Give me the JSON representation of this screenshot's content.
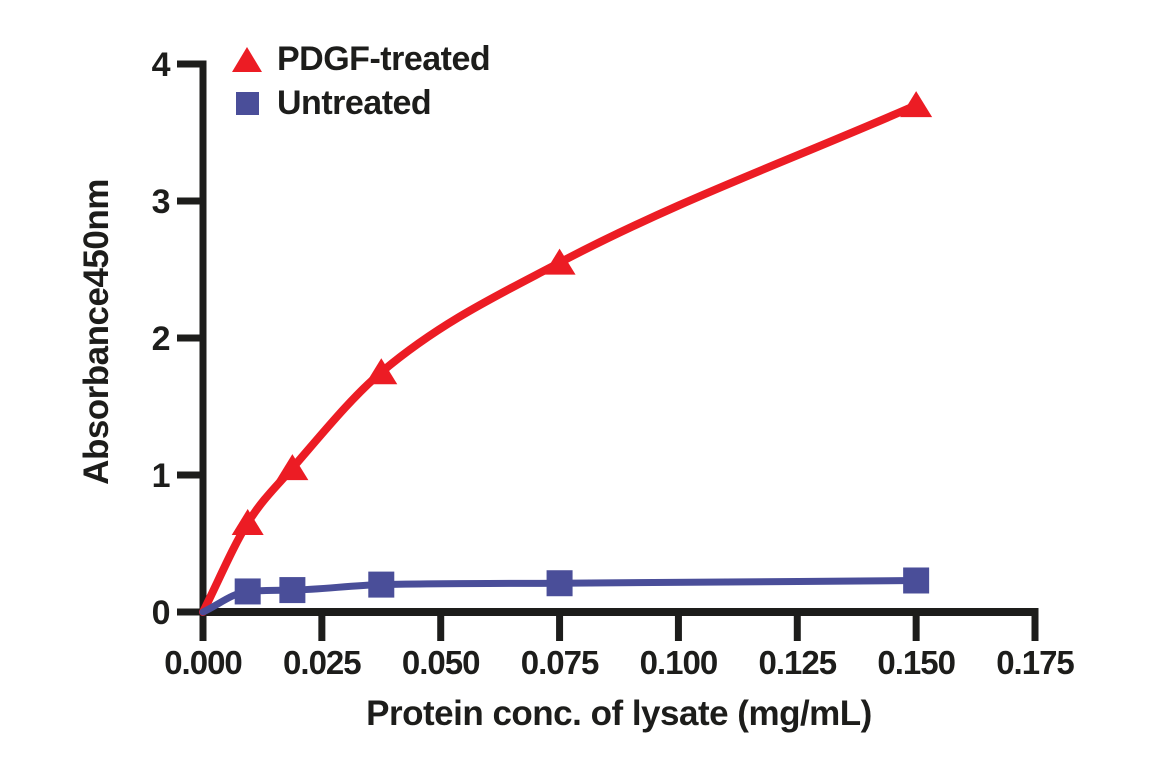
{
  "figure": {
    "background_color": "#ffffff",
    "text_color": "#1d1d1b",
    "axis_color": "#1d1d1b"
  },
  "legend": {
    "position": "top-left-inside",
    "items": [
      {
        "label": "PDGF-treated",
        "marker": "triangle-icon",
        "color": "#EC1C24"
      },
      {
        "label": "Untreated",
        "marker": "square-icon",
        "color": "#4A4E99"
      }
    ]
  },
  "chart_data": {
    "type": "line",
    "title": "",
    "xlabel": "Protein conc. of lysate (mg/mL)",
    "ylabel": "Absorbance450nm",
    "xlim": [
      0,
      0.175
    ],
    "ylim": [
      0,
      4
    ],
    "grid": false,
    "x": [
      0.0094,
      0.0188,
      0.0375,
      0.075,
      0.15
    ],
    "series": [
      {
        "name": "PDGF-treated",
        "marker": "triangle",
        "color": "#EC1C24",
        "line_width": 8,
        "curve_starts_at_origin": true,
        "values": [
          0.65,
          1.05,
          1.75,
          2.55,
          3.7
        ]
      },
      {
        "name": "Untreated",
        "marker": "square",
        "color": "#4A4E99",
        "line_width": 7,
        "curve_starts_at_origin": true,
        "values": [
          0.15,
          0.16,
          0.2,
          0.21,
          0.23
        ]
      }
    ],
    "x_ticks": [
      0.0,
      0.025,
      0.05,
      0.075,
      0.1,
      0.125,
      0.15,
      0.175
    ],
    "x_tick_labels": [
      "0.000",
      "0.025",
      "0.050",
      "0.075",
      "0.100",
      "0.125",
      "0.150",
      "0.175"
    ],
    "y_ticks": [
      0,
      1,
      2,
      3,
      4
    ],
    "y_tick_labels": [
      "0",
      "1",
      "2",
      "3",
      "4"
    ]
  }
}
